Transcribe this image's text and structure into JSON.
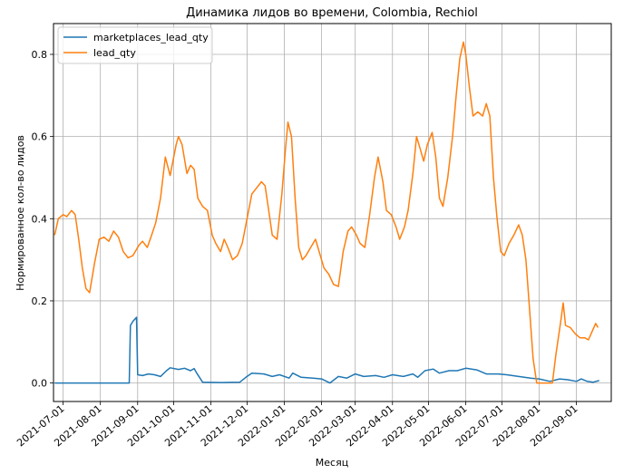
{
  "chart_data": {
    "type": "line",
    "title": "Динамика лидов во времени, Colombia, Rechiol",
    "xlabel": "Месяц",
    "ylabel": "Нормированное кол-во лидов",
    "xlim": [
      "2021-06-23",
      "2022-09-30"
    ],
    "ylim": [
      -0.045,
      0.875
    ],
    "y_ticks": [
      0.0,
      0.2,
      0.4,
      0.6,
      0.8
    ],
    "y_tick_labels": [
      "0.0",
      "0.2",
      "0.4",
      "0.6",
      "0.8"
    ],
    "x_ticks": [
      "2021-07-01",
      "2021-08-01",
      "2021-09-01",
      "2021-10-01",
      "2021-11-01",
      "2021-12-01",
      "2022-01-01",
      "2022-02-01",
      "2022-03-01",
      "2022-04-01",
      "2022-05-01",
      "2022-06-01",
      "2022-07-01",
      "2022-08-01",
      "2022-09-01"
    ],
    "x_tick_labels": [
      "2021-07-01",
      "2021-08-01",
      "2021-09-01",
      "2021-10-01",
      "2021-11-01",
      "2021-12-01",
      "2022-01-01",
      "2022-02-01",
      "2022-03-01",
      "2022-04-01",
      "2022-05-01",
      "2022-06-01",
      "2022-07-01",
      "2022-08-01",
      "2022-09-01"
    ],
    "grid": true,
    "legend_position": "top-left",
    "series": [
      {
        "name": "marketplaces_lead_qty",
        "color": "#1f77b4",
        "points": [
          [
            "2021-06-24",
            0.0
          ],
          [
            "2021-07-10",
            0.0
          ],
          [
            "2021-08-01",
            0.0
          ],
          [
            "2021-08-22",
            0.0
          ],
          [
            "2021-08-25",
            0.0
          ],
          [
            "2021-08-26",
            0.14
          ],
          [
            "2021-08-28",
            0.15
          ],
          [
            "2021-08-31",
            0.16
          ],
          [
            "2021-09-01",
            0.02
          ],
          [
            "2021-09-05",
            0.018
          ],
          [
            "2021-09-10",
            0.022
          ],
          [
            "2021-09-15",
            0.02
          ],
          [
            "2021-09-20",
            0.016
          ],
          [
            "2021-09-25",
            0.03
          ],
          [
            "2021-09-28",
            0.037
          ],
          [
            "2021-10-05",
            0.033
          ],
          [
            "2021-10-10",
            0.036
          ],
          [
            "2021-10-15",
            0.03
          ],
          [
            "2021-10-18",
            0.035
          ],
          [
            "2021-10-20",
            0.025
          ],
          [
            "2021-10-25",
            0.002
          ],
          [
            "2021-11-10",
            0.001
          ],
          [
            "2021-11-25",
            0.002
          ],
          [
            "2021-11-30",
            0.014
          ],
          [
            "2021-12-05",
            0.024
          ],
          [
            "2021-12-15",
            0.022
          ],
          [
            "2021-12-22",
            0.016
          ],
          [
            "2021-12-28",
            0.02
          ],
          [
            "2022-01-05",
            0.012
          ],
          [
            "2022-01-08",
            0.024
          ],
          [
            "2022-01-15",
            0.014
          ],
          [
            "2022-01-25",
            0.012
          ],
          [
            "2022-02-01",
            0.01
          ],
          [
            "2022-02-08",
            0.0
          ],
          [
            "2022-02-15",
            0.016
          ],
          [
            "2022-02-22",
            0.012
          ],
          [
            "2022-03-01",
            0.022
          ],
          [
            "2022-03-08",
            0.016
          ],
          [
            "2022-03-18",
            0.018
          ],
          [
            "2022-03-25",
            0.014
          ],
          [
            "2022-04-01",
            0.02
          ],
          [
            "2022-04-10",
            0.016
          ],
          [
            "2022-04-18",
            0.022
          ],
          [
            "2022-04-22",
            0.014
          ],
          [
            "2022-04-28",
            0.03
          ],
          [
            "2022-05-05",
            0.034
          ],
          [
            "2022-05-10",
            0.024
          ],
          [
            "2022-05-18",
            0.03
          ],
          [
            "2022-05-25",
            0.03
          ],
          [
            "2022-06-01",
            0.036
          ],
          [
            "2022-06-10",
            0.032
          ],
          [
            "2022-06-18",
            0.022
          ],
          [
            "2022-06-28",
            0.022
          ],
          [
            "2022-07-05",
            0.02
          ],
          [
            "2022-07-15",
            0.016
          ],
          [
            "2022-07-25",
            0.012
          ],
          [
            "2022-08-01",
            0.01
          ],
          [
            "2022-08-10",
            0.004
          ],
          [
            "2022-08-18",
            0.01
          ],
          [
            "2022-08-25",
            0.008
          ],
          [
            "2022-09-01",
            0.004
          ],
          [
            "2022-09-05",
            0.01
          ],
          [
            "2022-09-10",
            0.004
          ],
          [
            "2022-09-15",
            0.002
          ],
          [
            "2022-09-20",
            0.006
          ]
        ]
      },
      {
        "name": "lead_qty",
        "color": "#ff7f0e",
        "points": [
          [
            "2021-06-24",
            0.36
          ],
          [
            "2021-06-27",
            0.4
          ],
          [
            "2021-07-01",
            0.41
          ],
          [
            "2021-07-04",
            0.405
          ],
          [
            "2021-07-08",
            0.42
          ],
          [
            "2021-07-11",
            0.41
          ],
          [
            "2021-07-14",
            0.35
          ],
          [
            "2021-07-17",
            0.28
          ],
          [
            "2021-07-20",
            0.23
          ],
          [
            "2021-07-23",
            0.22
          ],
          [
            "2021-07-27",
            0.29
          ],
          [
            "2021-07-31",
            0.35
          ],
          [
            "2021-08-04",
            0.355
          ],
          [
            "2021-08-08",
            0.345
          ],
          [
            "2021-08-12",
            0.37
          ],
          [
            "2021-08-16",
            0.355
          ],
          [
            "2021-08-20",
            0.32
          ],
          [
            "2021-08-24",
            0.305
          ],
          [
            "2021-08-28",
            0.31
          ],
          [
            "2021-09-02",
            0.335
          ],
          [
            "2021-09-05",
            0.345
          ],
          [
            "2021-09-09",
            0.33
          ],
          [
            "2021-09-12",
            0.355
          ],
          [
            "2021-09-16",
            0.39
          ],
          [
            "2021-09-20",
            0.45
          ],
          [
            "2021-09-24",
            0.55
          ],
          [
            "2021-09-28",
            0.505
          ],
          [
            "2021-10-03",
            0.58
          ],
          [
            "2021-10-05",
            0.6
          ],
          [
            "2021-10-08",
            0.58
          ],
          [
            "2021-10-12",
            0.51
          ],
          [
            "2021-10-15",
            0.53
          ],
          [
            "2021-10-18",
            0.52
          ],
          [
            "2021-10-21",
            0.45
          ],
          [
            "2021-10-25",
            0.43
          ],
          [
            "2021-10-29",
            0.42
          ],
          [
            "2021-11-02",
            0.36
          ],
          [
            "2021-11-05",
            0.34
          ],
          [
            "2021-11-09",
            0.32
          ],
          [
            "2021-11-12",
            0.35
          ],
          [
            "2021-11-15",
            0.33
          ],
          [
            "2021-11-19",
            0.3
          ],
          [
            "2021-11-23",
            0.31
          ],
          [
            "2021-11-27",
            0.34
          ],
          [
            "2021-12-01",
            0.4
          ],
          [
            "2021-12-05",
            0.46
          ],
          [
            "2021-12-09",
            0.475
          ],
          [
            "2021-12-13",
            0.49
          ],
          [
            "2021-12-16",
            0.48
          ],
          [
            "2021-12-19",
            0.42
          ],
          [
            "2021-12-22",
            0.36
          ],
          [
            "2021-12-26",
            0.35
          ],
          [
            "2021-12-30",
            0.46
          ],
          [
            "2022-01-02",
            0.57
          ],
          [
            "2022-01-04",
            0.635
          ],
          [
            "2022-01-07",
            0.6
          ],
          [
            "2022-01-10",
            0.45
          ],
          [
            "2022-01-13",
            0.33
          ],
          [
            "2022-01-16",
            0.3
          ],
          [
            "2022-01-19",
            0.31
          ],
          [
            "2022-01-23",
            0.33
          ],
          [
            "2022-01-27",
            0.35
          ],
          [
            "2022-01-31",
            0.31
          ],
          [
            "2022-02-03",
            0.28
          ],
          [
            "2022-02-07",
            0.265
          ],
          [
            "2022-02-11",
            0.24
          ],
          [
            "2022-02-15",
            0.235
          ],
          [
            "2022-02-19",
            0.32
          ],
          [
            "2022-02-23",
            0.37
          ],
          [
            "2022-02-26",
            0.38
          ],
          [
            "2022-03-02",
            0.36
          ],
          [
            "2022-03-05",
            0.34
          ],
          [
            "2022-03-09",
            0.33
          ],
          [
            "2022-03-13",
            0.41
          ],
          [
            "2022-03-17",
            0.5
          ],
          [
            "2022-03-20",
            0.55
          ],
          [
            "2022-03-24",
            0.49
          ],
          [
            "2022-03-27",
            0.42
          ],
          [
            "2022-03-31",
            0.41
          ],
          [
            "2022-04-04",
            0.38
          ],
          [
            "2022-04-07",
            0.35
          ],
          [
            "2022-04-11",
            0.38
          ],
          [
            "2022-04-14",
            0.42
          ],
          [
            "2022-04-18",
            0.51
          ],
          [
            "2022-04-21",
            0.6
          ],
          [
            "2022-04-24",
            0.57
          ],
          [
            "2022-04-27",
            0.54
          ],
          [
            "2022-04-30",
            0.58
          ],
          [
            "2022-05-04",
            0.61
          ],
          [
            "2022-05-07",
            0.55
          ],
          [
            "2022-05-10",
            0.45
          ],
          [
            "2022-05-13",
            0.43
          ],
          [
            "2022-05-17",
            0.5
          ],
          [
            "2022-05-21",
            0.6
          ],
          [
            "2022-05-24",
            0.7
          ],
          [
            "2022-05-27",
            0.79
          ],
          [
            "2022-05-30",
            0.83
          ],
          [
            "2022-06-01",
            0.8
          ],
          [
            "2022-06-04",
            0.72
          ],
          [
            "2022-06-07",
            0.65
          ],
          [
            "2022-06-11",
            0.66
          ],
          [
            "2022-06-15",
            0.65
          ],
          [
            "2022-06-18",
            0.68
          ],
          [
            "2022-06-21",
            0.65
          ],
          [
            "2022-06-24",
            0.5
          ],
          [
            "2022-06-27",
            0.4
          ],
          [
            "2022-06-30",
            0.32
          ],
          [
            "2022-07-03",
            0.31
          ],
          [
            "2022-07-07",
            0.34
          ],
          [
            "2022-07-11",
            0.36
          ],
          [
            "2022-07-15",
            0.385
          ],
          [
            "2022-07-18",
            0.36
          ],
          [
            "2022-07-21",
            0.3
          ],
          [
            "2022-07-24",
            0.18
          ],
          [
            "2022-07-27",
            0.06
          ],
          [
            "2022-07-30",
            0.0
          ],
          [
            "2022-08-05",
            0.0
          ],
          [
            "2022-08-12",
            0.0
          ],
          [
            "2022-08-15",
            0.07
          ],
          [
            "2022-08-19",
            0.15
          ],
          [
            "2022-08-21",
            0.195
          ],
          [
            "2022-08-23",
            0.14
          ],
          [
            "2022-08-27",
            0.135
          ],
          [
            "2022-08-31",
            0.12
          ],
          [
            "2022-09-04",
            0.11
          ],
          [
            "2022-09-08",
            0.11
          ],
          [
            "2022-09-11",
            0.105
          ],
          [
            "2022-09-14",
            0.125
          ],
          [
            "2022-09-17",
            0.145
          ],
          [
            "2022-09-19",
            0.135
          ]
        ]
      }
    ]
  }
}
